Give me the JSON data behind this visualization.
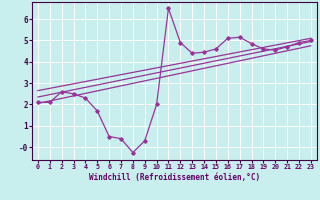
{
  "xlabel": "Windchill (Refroidissement éolien,°C)",
  "background_color": "#c8eeee",
  "grid_color": "#ffffff",
  "line_color": "#993399",
  "xlim": [
    -0.5,
    23.5
  ],
  "ylim": [
    -0.6,
    6.8
  ],
  "x_ticks": [
    0,
    1,
    2,
    3,
    4,
    5,
    6,
    7,
    8,
    9,
    10,
    11,
    12,
    13,
    14,
    15,
    16,
    17,
    18,
    19,
    20,
    21,
    22,
    23
  ],
  "y_ticks": [
    0,
    1,
    2,
    3,
    4,
    5,
    6
  ],
  "y_tick_labels": [
    "-0",
    "1",
    "2",
    "3",
    "4",
    "5",
    "6"
  ],
  "main_x": [
    0,
    1,
    2,
    3,
    4,
    5,
    6,
    7,
    8,
    9,
    10,
    11,
    12,
    13,
    14,
    15,
    16,
    17,
    18,
    19,
    20,
    21,
    22,
    23
  ],
  "main_y": [
    2.1,
    2.1,
    2.6,
    2.5,
    2.3,
    1.7,
    0.5,
    0.4,
    -0.25,
    0.3,
    2.0,
    6.5,
    4.9,
    4.4,
    4.45,
    4.6,
    5.1,
    5.15,
    4.85,
    4.6,
    4.55,
    4.7,
    4.9,
    5.0
  ],
  "line1_x": [
    0,
    23
  ],
  "line1_y": [
    2.05,
    4.75
  ],
  "line2_x": [
    0,
    23
  ],
  "line2_y": [
    2.35,
    4.95
  ],
  "line3_x": [
    0,
    23
  ],
  "line3_y": [
    2.65,
    5.1
  ]
}
